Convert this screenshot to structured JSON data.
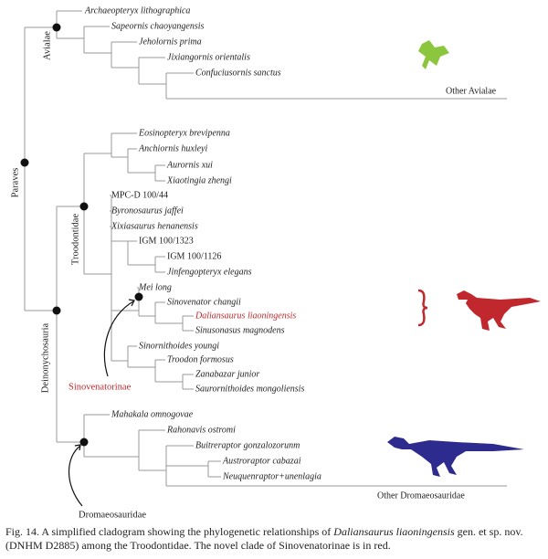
{
  "clades": {
    "paraves": "Paraves",
    "avialae": "Avialae",
    "deinonychosauria": "Deinonychosauria",
    "troodontidae": "Troodontidae",
    "sinovenatorinae": "Sinovenatorinae",
    "dromaeosauridae": "Dromaeosauridae"
  },
  "taxa": [
    "Archaeopteryx lithographica",
    "Sapeornis chaoyangensis",
    "Jeholornis prima",
    "Jixiangornis orientalis",
    "Confuciusornis sanctus",
    "Other Avialae",
    "Eosinopteryx brevipenna",
    "Anchiornis huxleyi",
    "Aurornis xui",
    "Xiaotingia zhengi",
    "MPC-D 100/44",
    "Byronosaurus jaffei",
    "Xixiasaurus henanensis",
    "IGM 100/1323",
    "IGM 100/1126",
    "Jinfengopteryx elegans",
    "Mei long",
    "Sinovenator changii",
    "Daliansaurus liaoningensis",
    "Sinusonasus magnodens",
    "Sinornithoides youngi",
    "Troodon formosus",
    "Zanabazar junior",
    "Saurornithoides mongoliensis",
    "Mahakala omnogovae",
    "Rahonavis ostromi",
    "Buitreraptor gonzalozorunm",
    "Austroraptor cabazai",
    "Neuquenraptor+unenlagia",
    "Other Dromaeosauridae"
  ],
  "caption": {
    "lead": "Fig. 14. A simplified cladogram showing the phylogenetic relationships of ",
    "species": "Daliansaurus liaoningensis",
    "rest": " gen. et sp. nov. (DNHM D2885) among the Troodontidae. The novel clade of Sinovenatorinae is in red."
  }
}
